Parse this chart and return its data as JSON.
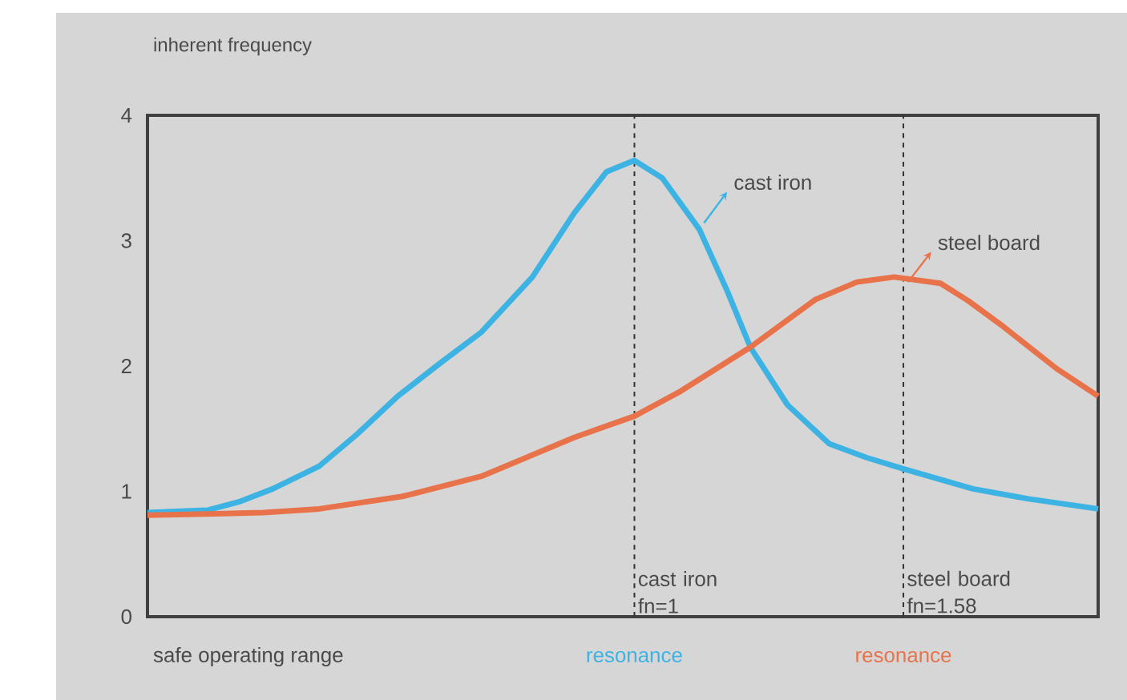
{
  "chart_data": {
    "type": "line",
    "ylabel": "inherent frequency",
    "xlim": [
      -0.05,
      2.0
    ],
    "ylim": [
      0,
      4
    ],
    "yticks": [
      0,
      1,
      2,
      3,
      4
    ],
    "tick_labels": "y",
    "grid": false,
    "legend": "top right",
    "marker": "none",
    "line_style": "solid",
    "series": [
      {
        "name": "cast iron",
        "color": "#3db3e3",
        "x": [
          -0.05,
          0.08,
          0.15,
          0.22,
          0.32,
          0.4,
          0.49,
          0.58,
          0.67,
          0.78,
          0.87,
          0.94,
          1.0,
          1.06,
          1.14,
          1.2,
          1.25,
          1.33,
          1.42,
          1.5,
          1.58,
          1.73,
          1.85,
          2.0
        ],
        "values": [
          0.83,
          0.85,
          0.92,
          1.02,
          1.2,
          1.45,
          1.76,
          2.02,
          2.27,
          2.71,
          3.22,
          3.55,
          3.64,
          3.5,
          3.09,
          2.6,
          2.15,
          1.69,
          1.38,
          1.27,
          1.18,
          1.02,
          0.94,
          0.86
        ]
      },
      {
        "name": "steel board",
        "color": "#e8734a",
        "x": [
          -0.05,
          0.08,
          0.2,
          0.32,
          0.5,
          0.67,
          0.87,
          1.0,
          1.1,
          1.25,
          1.39,
          1.48,
          1.56,
          1.66,
          1.72,
          1.79,
          1.91,
          2.0
        ],
        "values": [
          0.81,
          0.82,
          0.83,
          0.86,
          0.96,
          1.12,
          1.43,
          1.6,
          1.8,
          2.15,
          2.53,
          2.67,
          2.71,
          2.66,
          2.52,
          2.33,
          1.98,
          1.76
        ]
      }
    ],
    "ref_lines": [
      {
        "axis": "x",
        "value": 1,
        "label": "cast iron fn=1",
        "color": "#333333",
        "line_style": "dashed"
      },
      {
        "axis": "x",
        "value": 1.58,
        "label": "steel board fn=1.58",
        "color": "#333333",
        "line_style": "dashed"
      }
    ],
    "annotations": [
      "safe operating range",
      "resonance",
      "resonance"
    ]
  }
}
